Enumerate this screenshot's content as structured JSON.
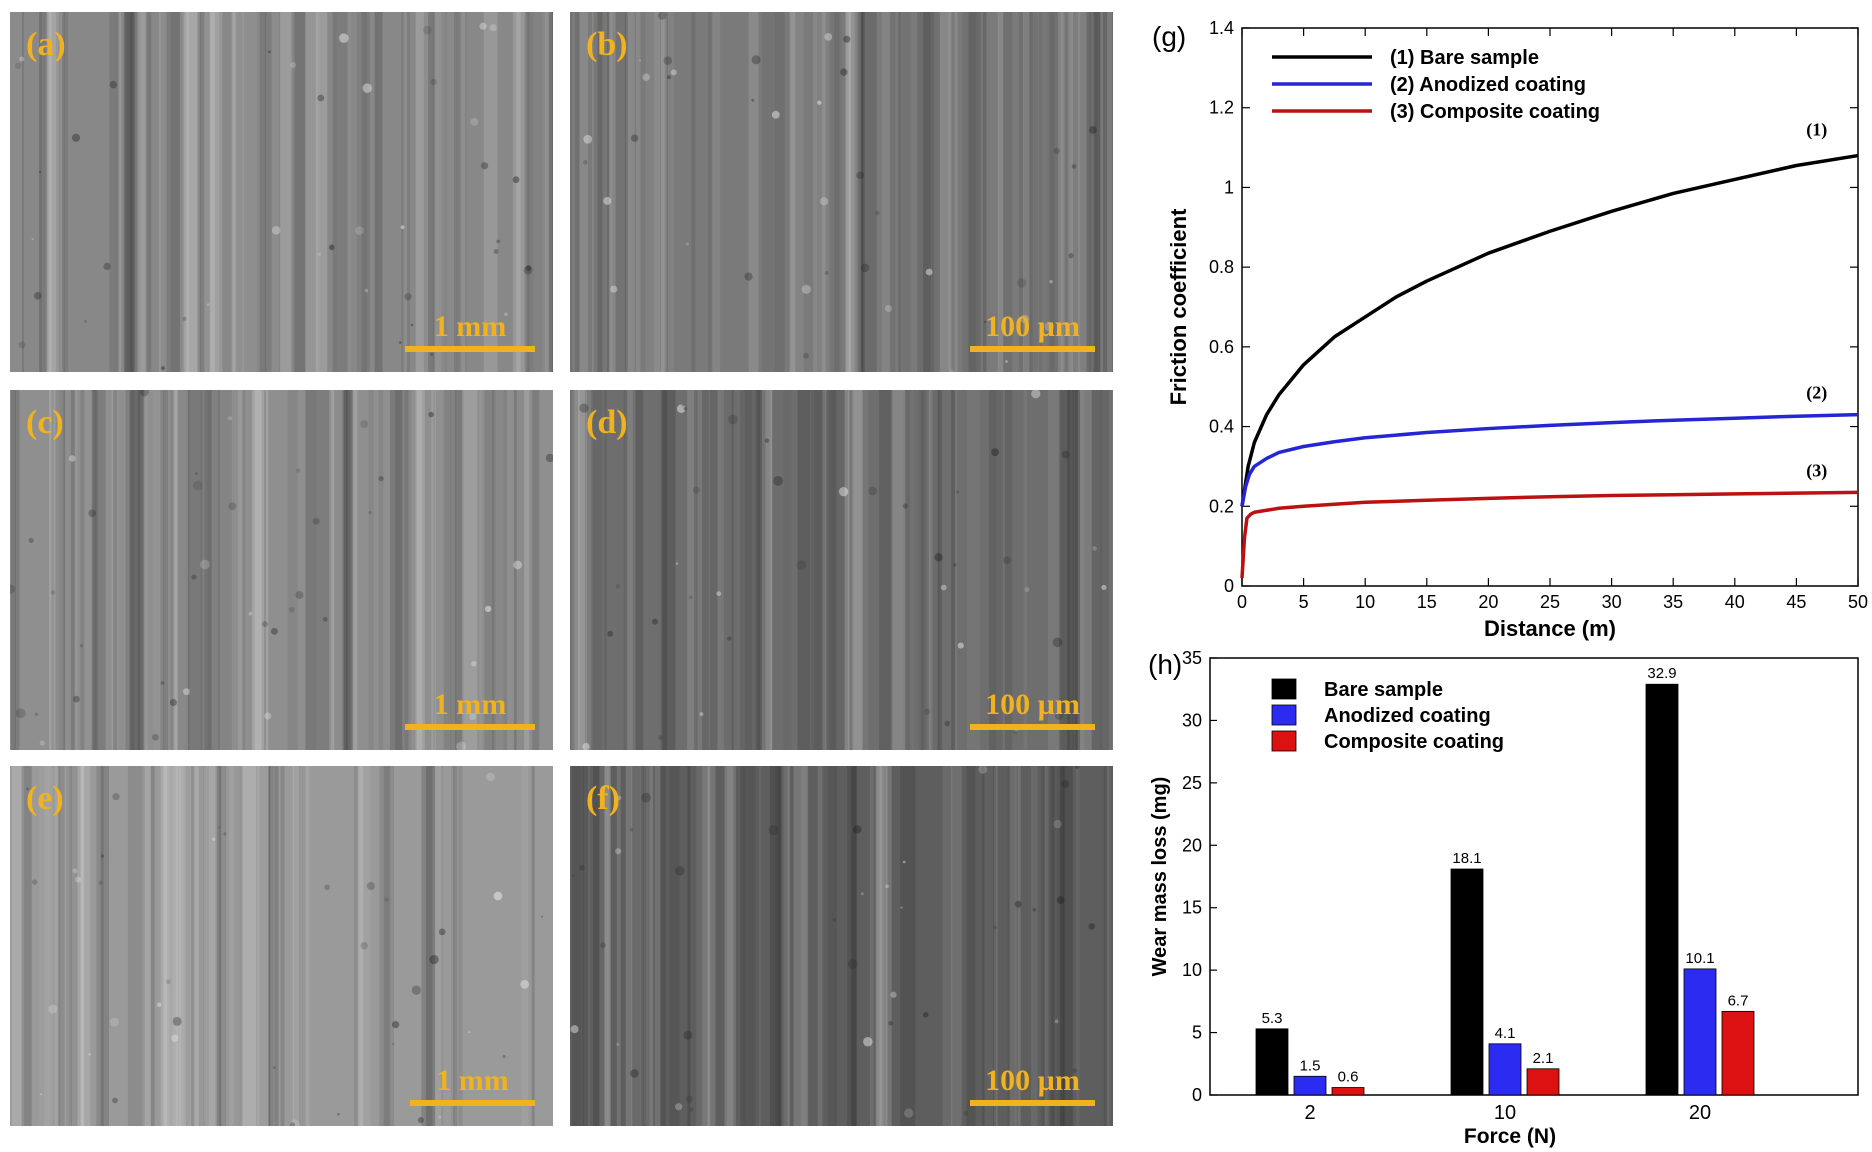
{
  "panels": [
    {
      "id": "a",
      "label": "(a)",
      "scale": "1 mm",
      "tone": "#888888"
    },
    {
      "id": "b",
      "label": "(b)",
      "scale": "100 µm",
      "tone": "#7a7a7a"
    },
    {
      "id": "c",
      "label": "(c)",
      "scale": "1 mm",
      "tone": "#8f8f8f"
    },
    {
      "id": "d",
      "label": "(d)",
      "scale": "100 µm",
      "tone": "#6e6e6e"
    },
    {
      "id": "e",
      "label": "(e)",
      "scale": "1 mm",
      "tone": "#9a9a9a"
    },
    {
      "id": "f",
      "label": "(f)",
      "scale": "100 µm",
      "tone": "#5e5e5e"
    }
  ],
  "chart_data": [
    {
      "id": "g",
      "panel_label": "(g)",
      "type": "line",
      "xlabel": "Distance (m)",
      "ylabel": "Friction coefficient",
      "xlim": [
        0,
        50
      ],
      "ylim": [
        0,
        1.4
      ],
      "xticks": [
        0,
        5,
        10,
        15,
        20,
        25,
        30,
        35,
        40,
        45,
        50
      ],
      "yticks": [
        0,
        0.2,
        0.4,
        0.6,
        0.8,
        1,
        1.2,
        1.4
      ],
      "legend_position": "top-left",
      "series": [
        {
          "name": "(1) Bare sample",
          "tag": "(1)",
          "color": "#000000",
          "x": [
            0,
            0.5,
            1,
            2,
            3,
            5,
            7.5,
            10,
            12.5,
            15,
            20,
            25,
            30,
            35,
            40,
            45,
            50
          ],
          "y": [
            0.2,
            0.3,
            0.36,
            0.43,
            0.48,
            0.555,
            0.625,
            0.675,
            0.725,
            0.765,
            0.835,
            0.89,
            0.94,
            0.985,
            1.02,
            1.055,
            1.08
          ]
        },
        {
          "name": "(2) Anodized coating",
          "tag": "(2)",
          "color": "#2525d6",
          "x": [
            0,
            0.3,
            0.6,
            1,
            2,
            3,
            5,
            7.5,
            10,
            15,
            20,
            25,
            30,
            35,
            40,
            45,
            50
          ],
          "y": [
            0.2,
            0.25,
            0.28,
            0.3,
            0.32,
            0.335,
            0.35,
            0.362,
            0.372,
            0.385,
            0.395,
            0.403,
            0.41,
            0.416,
            0.421,
            0.426,
            0.43
          ]
        },
        {
          "name": "(3) Composite coating",
          "tag": "(3)",
          "color": "#bb1111",
          "x": [
            0,
            0.2,
            0.4,
            0.7,
            1,
            2,
            3,
            5,
            7.5,
            10,
            15,
            20,
            25,
            30,
            35,
            40,
            45,
            50
          ],
          "y": [
            0.02,
            0.12,
            0.17,
            0.18,
            0.185,
            0.19,
            0.195,
            0.2,
            0.205,
            0.21,
            0.215,
            0.22,
            0.224,
            0.227,
            0.229,
            0.231,
            0.233,
            0.235
          ]
        }
      ]
    },
    {
      "id": "h",
      "panel_label": "(h)",
      "type": "bar",
      "xlabel": "Force (N)",
      "ylabel": "Wear mass loss (mg)",
      "categories": [
        "2",
        "10",
        "20"
      ],
      "ylim": [
        0,
        35
      ],
      "yticks": [
        0,
        5,
        10,
        15,
        20,
        25,
        30,
        35
      ],
      "legend_position": "top-left",
      "series": [
        {
          "name": "Bare sample",
          "color": "#000000",
          "values": [
            5.3,
            18.1,
            32.9
          ],
          "labels": [
            "5.3",
            "18.1",
            "32.9"
          ]
        },
        {
          "name": "Anodized coating",
          "color": "#2b2bf2",
          "values": [
            1.5,
            4.1,
            10.1
          ],
          "labels": [
            "1.5",
            "4.1",
            "10.1"
          ]
        },
        {
          "name": "Composite coating",
          "color": "#dd1111",
          "values": [
            0.6,
            2.1,
            6.7
          ],
          "labels": [
            "0.6",
            "2.1",
            "6.7"
          ]
        }
      ]
    }
  ]
}
